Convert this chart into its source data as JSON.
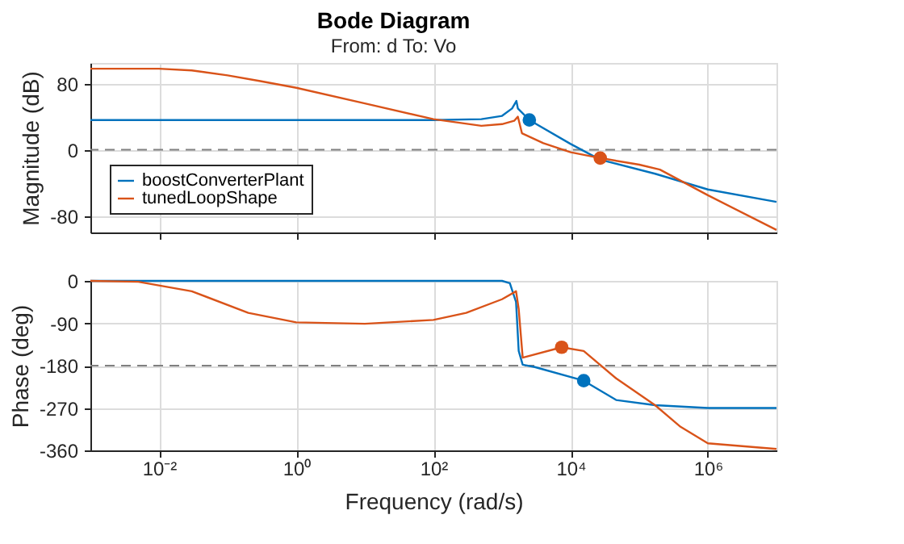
{
  "chart_data": [
    {
      "type": "line",
      "title": "Bode Diagram",
      "subtitle": "From: d  To: Vo",
      "ylabel": "Magnitude (dB)",
      "log": "x",
      "grid": true,
      "legend": "bottom left",
      "tick_labels": "y",
      "line_style": "solid",
      "xlim": [
        0.001,
        10000000
      ],
      "ylim": [
        -100,
        105
      ],
      "yticks": [
        -80,
        0,
        80
      ],
      "xticks": [
        {
          "value": 0.01,
          "label": null
        },
        {
          "value": 1,
          "label": null
        },
        {
          "value": 100,
          "label": null
        },
        {
          "value": 10000,
          "label": null
        },
        {
          "value": 1000000,
          "label": null
        }
      ],
      "ref_lines": [
        {
          "axis": "y",
          "value": 0,
          "color": "#808080",
          "line_style": "dashed"
        }
      ],
      "series": [
        {
          "name": "boostConverterPlant",
          "color": "#0072bd",
          "x": [
            0.001,
            100,
            500,
            1000,
            1400,
            1620,
            1700,
            2500,
            10000,
            27000,
            170000,
            1000000,
            10000000
          ],
          "values": [
            36,
            36,
            37,
            41,
            50,
            59,
            50,
            36,
            7,
            -12,
            -29,
            -48,
            -63
          ]
        },
        {
          "name": "tunedLoopShape",
          "color": "#d95319",
          "x": [
            0.001,
            0.01,
            0.03,
            0.1,
            0.3,
            1,
            10,
            100,
            500,
            1000,
            1500,
            1700,
            1950,
            4000,
            10000,
            27000,
            100000,
            200000,
            1000000,
            10000000
          ],
          "values": [
            98,
            98,
            96,
            90,
            83,
            75,
            56,
            37,
            29,
            31,
            35,
            40,
            20,
            8,
            -3,
            -10,
            -18,
            -24,
            -55,
            -97
          ]
        },
        {
          "type": "scatter",
          "marker": "circle",
          "color": "#0072bd",
          "x": [
            2500
          ],
          "values": [
            36
          ]
        },
        {
          "type": "scatter",
          "marker": "circle",
          "color": "#d95319",
          "x": [
            27000
          ],
          "values": [
            -10
          ]
        }
      ]
    },
    {
      "type": "line",
      "xlabel": "Frequency (rad/s)",
      "ylabel": "Phase (deg)",
      "log": "x",
      "grid": true,
      "line_style": "solid",
      "xlim": [
        0.001,
        10000000
      ],
      "ylim": [
        -360,
        0
      ],
      "yticks": [
        -360,
        -270,
        -180,
        -90,
        0
      ],
      "xticks": [
        {
          "value": 0.01,
          "label": "10⁻²"
        },
        {
          "value": 1,
          "label": "10⁰"
        },
        {
          "value": 100,
          "label": "10²"
        },
        {
          "value": 10000,
          "label": "10⁴"
        },
        {
          "value": 1000000,
          "label": "10⁶"
        }
      ],
      "ref_lines": [
        {
          "axis": "y",
          "value": -180,
          "color": "#808080",
          "line_style": "dashed"
        }
      ],
      "series": [
        {
          "color": "#0072bd",
          "x": [
            0.001,
            1000,
            1300,
            1600,
            1750,
            2000,
            3000,
            15500,
            46000,
            170000,
            1000000,
            10000000
          ],
          "values": [
            0,
            0,
            -5,
            -45,
            -149,
            -178,
            -183,
            -212,
            -253,
            -264,
            -270,
            -270
          ]
        },
        {
          "color": "#d95319",
          "x": [
            0.001,
            0.005,
            0.03,
            0.2,
            1,
            10,
            100,
            300,
            1000,
            1600,
            1750,
            2000,
            7400,
            15500,
            46000,
            170000,
            400000,
            1000000,
            10000000
          ],
          "values": [
            0,
            -2,
            -22,
            -68,
            -88,
            -91,
            -83,
            -68,
            -39,
            -22,
            -60,
            -163,
            -141,
            -149,
            -207,
            -264,
            -310,
            -345,
            -357
          ]
        },
        {
          "type": "scatter",
          "marker": "circle",
          "color": "#d95319",
          "x": [
            7400
          ],
          "values": [
            -141
          ]
        },
        {
          "type": "scatter",
          "marker": "circle",
          "color": "#0072bd",
          "x": [
            15500
          ],
          "values": [
            -212
          ]
        }
      ]
    }
  ]
}
